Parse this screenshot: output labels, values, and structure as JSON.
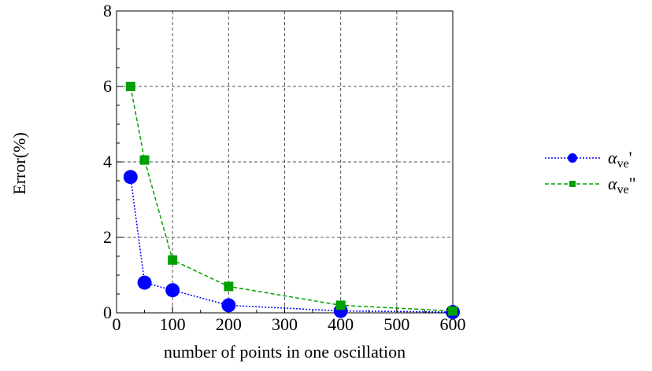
{
  "chart_data": {
    "type": "line",
    "title": "",
    "xlabel": "number of points in one oscillation",
    "ylabel": "Error(%)",
    "xlim": [
      0,
      600
    ],
    "ylim": [
      0,
      8
    ],
    "x_ticks": [
      0,
      100,
      200,
      300,
      400,
      500,
      600
    ],
    "y_ticks": [
      0,
      2,
      4,
      6,
      8
    ],
    "grid": true,
    "legend_position": "right",
    "x": [
      25,
      50,
      100,
      200,
      400,
      600
    ],
    "series": [
      {
        "name": "α_ve'",
        "legend_main": "α",
        "legend_sub": "ve",
        "legend_suffix": "'",
        "color": "#0000ff",
        "marker": "circle",
        "line_style": "dotted",
        "values": [
          3.6,
          0.8,
          0.6,
          0.2,
          0.05,
          0.02
        ]
      },
      {
        "name": "α_ve\"",
        "legend_main": "α",
        "legend_sub": "ve",
        "legend_suffix": "\"",
        "color": "#00a000",
        "marker": "square",
        "line_style": "dashed",
        "values": [
          6.0,
          4.05,
          1.4,
          0.7,
          0.2,
          0.05
        ]
      }
    ]
  }
}
